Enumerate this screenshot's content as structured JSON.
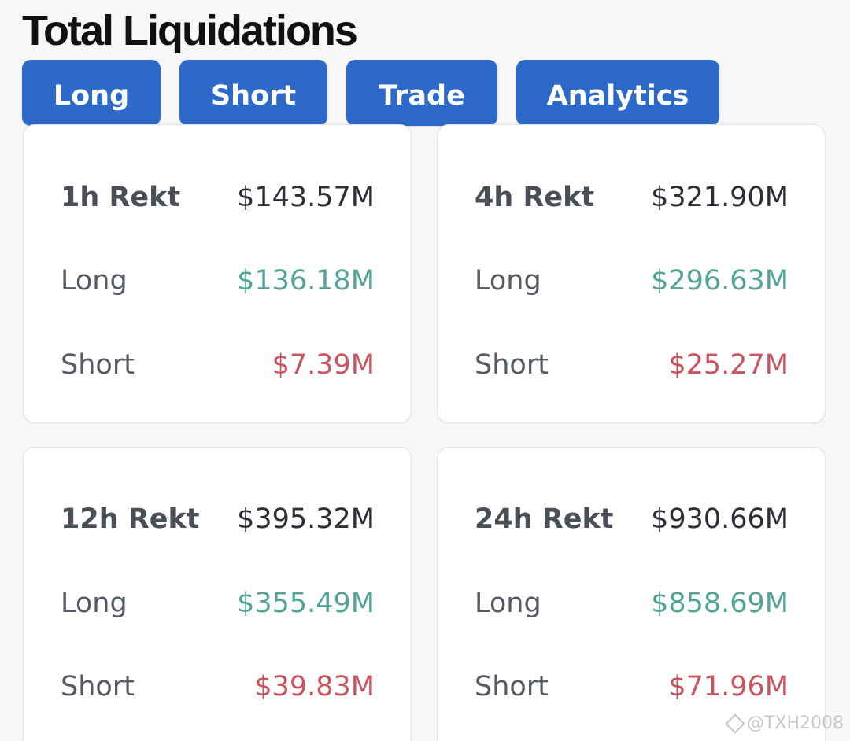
{
  "page_title": "Total Liquidations",
  "tabs": [
    {
      "label": "Long"
    },
    {
      "label": "Short"
    },
    {
      "label": "Trade"
    },
    {
      "label": "Analytics"
    }
  ],
  "cards": [
    {
      "title": "1h Rekt",
      "total": "$143.57M",
      "long_label": "Long",
      "long_value": "$136.18M",
      "short_label": "Short",
      "short_value": "$7.39M"
    },
    {
      "title": "4h Rekt",
      "total": "$321.90M",
      "long_label": "Long",
      "long_value": "$296.63M",
      "short_label": "Short",
      "short_value": "$25.27M"
    },
    {
      "title": "12h Rekt",
      "total": "$395.32M",
      "long_label": "Long",
      "long_value": "$355.49M",
      "short_label": "Short",
      "short_value": "$39.83M"
    },
    {
      "title": "24h Rekt",
      "total": "$930.66M",
      "long_label": "Long",
      "long_value": "$858.69M",
      "short_label": "Short",
      "short_value": "$71.96M"
    }
  ],
  "watermark": {
    "text": "@TXH2008",
    "icon": "binance-diamond-icon"
  },
  "colors": {
    "tab_bg": "#2d69c9",
    "long_green": "#52a596",
    "short_red": "#c95560",
    "page_bg": "#f7f7f8"
  }
}
